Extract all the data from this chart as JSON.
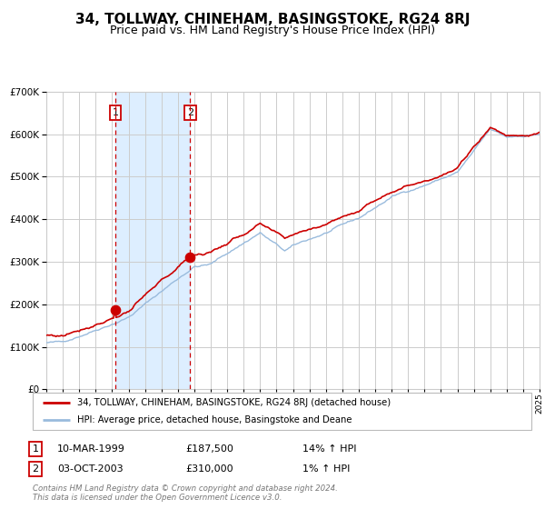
{
  "title": "34, TOLLWAY, CHINEHAM, BASINGSTOKE, RG24 8RJ",
  "subtitle": "Price paid vs. HM Land Registry's House Price Index (HPI)",
  "legend_line1": "34, TOLLWAY, CHINEHAM, BASINGSTOKE, RG24 8RJ (detached house)",
  "legend_line2": "HPI: Average price, detached house, Basingstoke and Deane",
  "footnote1": "Contains HM Land Registry data © Crown copyright and database right 2024.",
  "footnote2": "This data is licensed under the Open Government Licence v3.0.",
  "sale1_date": "10-MAR-1999",
  "sale1_price": 187500,
  "sale1_hpi_text": "14% ↑ HPI",
  "sale2_date": "03-OCT-2003",
  "sale2_price": 310000,
  "sale2_hpi_text": "1% ↑ HPI",
  "sale1_year": 1999.19,
  "sale2_year": 2003.75,
  "price_line_color": "#cc0000",
  "hpi_line_color": "#99bbdd",
  "shaded_region_color": "#ddeeff",
  "ylim_min": 0,
  "ylim_max": 700000,
  "xlim_min": 1995,
  "xlim_max": 2025,
  "background_color": "#ffffff",
  "grid_color": "#cccccc",
  "title_fontsize": 11,
  "subtitle_fontsize": 9
}
